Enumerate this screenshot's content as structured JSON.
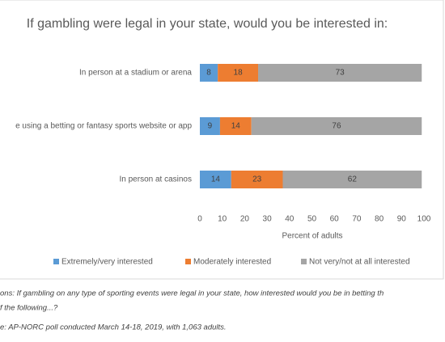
{
  "chart_data": {
    "type": "stacked_bar_horizontal",
    "title": "If gambling were legal in your state, would you be interested in:",
    "categories": [
      "In person at a stadium or arena",
      "e using a betting or fantasy sports website or app",
      "In person at casinos"
    ],
    "series": [
      {
        "name": "Extremely/very interested",
        "color": "#5b9bd5",
        "values": [
          8,
          9,
          14
        ]
      },
      {
        "name": "Moderately interested",
        "color": "#ed7d31",
        "values": [
          18,
          14,
          23
        ]
      },
      {
        "name": "Not very/not at all interested",
        "color": "#a5a5a5",
        "values": [
          73,
          76,
          62
        ]
      }
    ],
    "xlim": [
      0,
      100
    ],
    "xticks": [
      0,
      10,
      20,
      30,
      40,
      50,
      60,
      70,
      80,
      90,
      100
    ],
    "xlabel": "Percent of adults",
    "legend": "bottom",
    "notes": [
      "ons: If gambling on any type of sporting events were legal in your state, how interested would you be in betting th",
      "f the following...?",
      "e: AP-NORC poll conducted March 14-18, 2019, with 1,063 adults."
    ]
  }
}
